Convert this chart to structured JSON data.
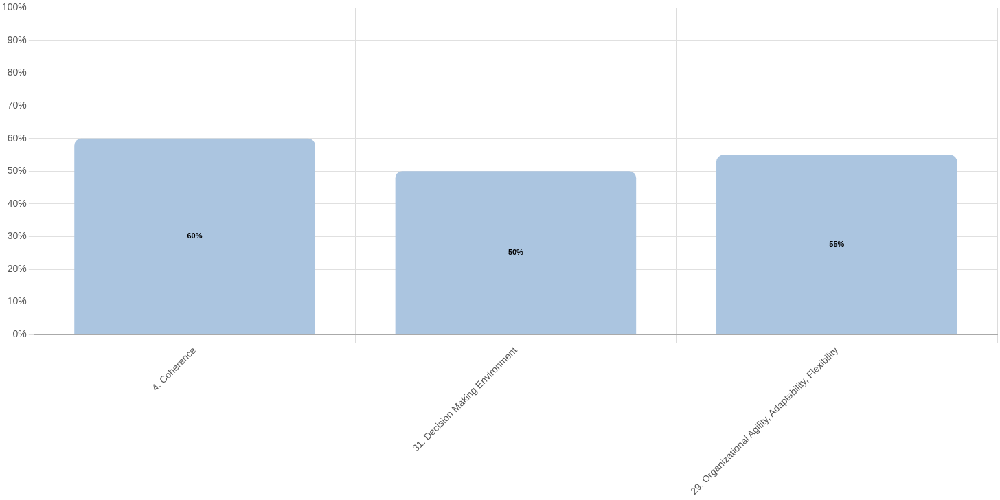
{
  "chart_data": {
    "type": "bar",
    "categories": [
      "4. Coherence",
      "31. Decision Making Environment",
      "29. Organizational Agility, Adaptability, Flexibility"
    ],
    "series": [
      {
        "color": "#abc5e0",
        "values": [
          60,
          50,
          55
        ],
        "value_labels": [
          "60%",
          "50%",
          "55%"
        ]
      }
    ],
    "ylim": [
      0,
      100
    ],
    "yticks": [
      {
        "value": 0,
        "label": "0%"
      },
      {
        "value": 10,
        "label": "10%"
      },
      {
        "value": 20,
        "label": "20%"
      },
      {
        "value": 30,
        "label": "30%"
      },
      {
        "value": 40,
        "label": "40%"
      },
      {
        "value": 50,
        "label": "50%"
      },
      {
        "value": 60,
        "label": "60%"
      },
      {
        "value": 70,
        "label": "70%"
      },
      {
        "value": 80,
        "label": "80%"
      },
      {
        "value": 90,
        "label": "90%"
      },
      {
        "value": 100,
        "label": "100%"
      }
    ],
    "grid": true
  }
}
